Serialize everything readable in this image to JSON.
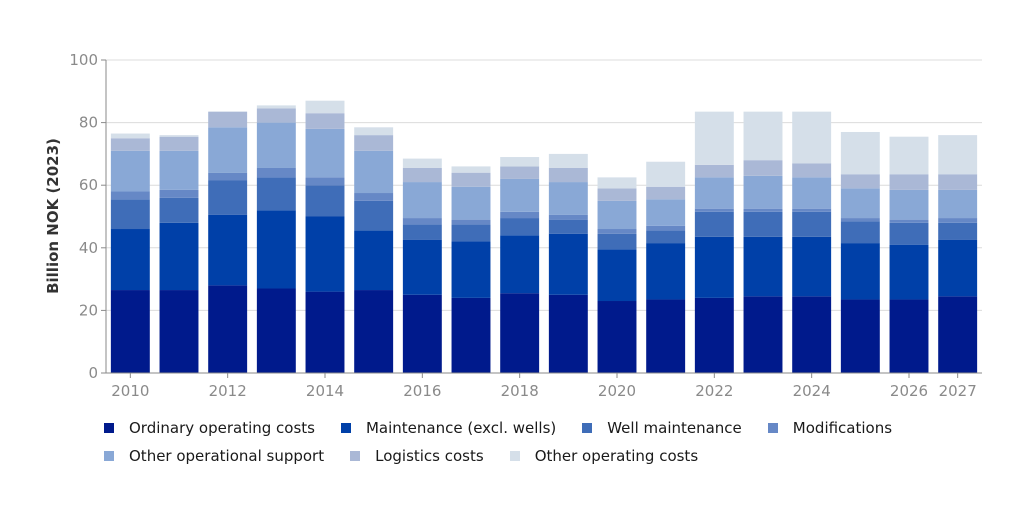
{
  "chart_data": {
    "type": "bar",
    "stacked": true,
    "ylabel": "Billion NOK (2023)",
    "ylim": [
      0,
      100
    ],
    "yticks": [
      0,
      20,
      40,
      60,
      80,
      100
    ],
    "grid": true,
    "legend_position": "bottom",
    "categories": [
      "2010",
      "2011",
      "2012",
      "2013",
      "2014",
      "2015",
      "2016",
      "2017",
      "2018",
      "2019",
      "2020",
      "2021",
      "2022",
      "2023",
      "2024",
      "2025",
      "2026",
      "2027"
    ],
    "xtick_labels": [
      "2010",
      "",
      "2012",
      "",
      "2014",
      "",
      "2016",
      "",
      "2018",
      "",
      "2020",
      "",
      "2022",
      "",
      "2024",
      "",
      "2026",
      "2027"
    ],
    "series": [
      {
        "name": "Ordinary operating costs",
        "color": "#001a8c",
        "values": [
          26.5,
          26.5,
          28,
          27,
          26,
          26.5,
          25,
          24,
          25.5,
          25,
          23,
          23.5,
          24,
          24.5,
          24.5,
          23.5,
          23.5,
          24.5
        ]
      },
      {
        "name": "Maintenance (excl. wells)",
        "color": "#0040a8",
        "values": [
          19.5,
          21.5,
          22.5,
          25,
          24,
          19,
          17.5,
          18,
          18.5,
          19.5,
          16.5,
          18,
          19.5,
          19,
          19,
          18,
          17.5,
          18
        ]
      },
      {
        "name": "Well maintenance",
        "color": "#3f6db8",
        "values": [
          9.5,
          8,
          11,
          10.5,
          10,
          9.5,
          5,
          5.5,
          5.5,
          4.5,
          5,
          4,
          8,
          8,
          8,
          7,
          7,
          5.5
        ]
      },
      {
        "name": "Modifications",
        "color": "#6688c6",
        "values": [
          2.5,
          2.5,
          2.5,
          3,
          2.5,
          2.5,
          2,
          1.5,
          2,
          1.5,
          1.5,
          1.5,
          1,
          1,
          1,
          1,
          1,
          1.5
        ]
      },
      {
        "name": "Other operational support",
        "color": "#89a8d6",
        "values": [
          13,
          12.5,
          14.5,
          14.5,
          15.5,
          13.5,
          11.5,
          10.5,
          10.5,
          10.5,
          9,
          8.5,
          10,
          10.5,
          10,
          9.5,
          9.5,
          9
        ]
      },
      {
        "name": "Logistics costs",
        "color": "#aab8d6",
        "values": [
          4,
          4.5,
          5,
          4.5,
          5,
          5,
          4.5,
          4.5,
          4,
          4.5,
          4,
          4,
          4,
          5,
          4.5,
          4.5,
          5,
          5
        ]
      },
      {
        "name": "Other operating costs",
        "color": "#d5dfe9",
        "values": [
          1.5,
          0.5,
          0,
          1,
          4,
          2.5,
          3,
          2,
          3,
          4.5,
          3.5,
          8,
          17,
          15.5,
          16.5,
          13.5,
          12,
          12.5
        ]
      }
    ]
  }
}
